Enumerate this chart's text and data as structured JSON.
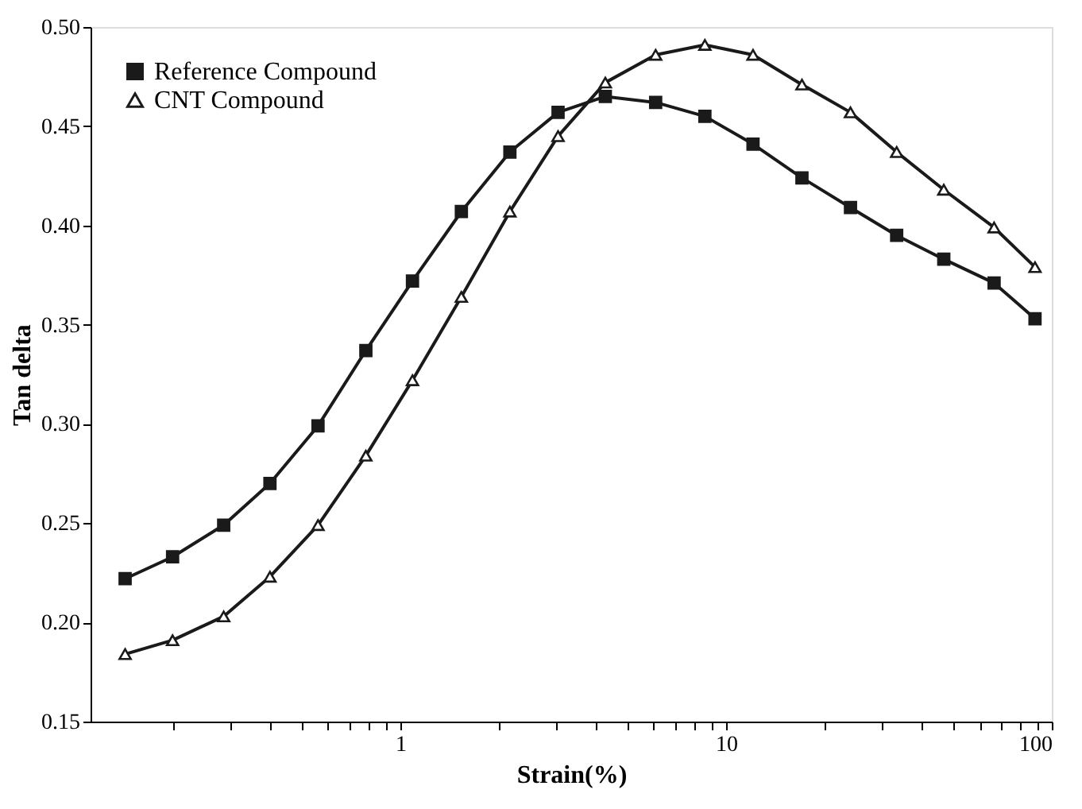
{
  "chart_data": {
    "type": "line",
    "xlabel": "Strain(%)",
    "ylabel": "Tan delta",
    "log": "x",
    "legend": "top left",
    "grid": false,
    "x": [
      0.143,
      0.2,
      0.287,
      0.398,
      0.559,
      0.784,
      1.09,
      1.54,
      2.17,
      3.05,
      4.26,
      6.08,
      8.61,
      12.1,
      17.1,
      24.1,
      33.4,
      46.6,
      66.5,
      88.8
    ],
    "xlim": [
      0.112,
      100
    ],
    "ylim": [
      0.15,
      0.5
    ],
    "xticks": [
      {
        "value": 0.2,
        "label": null
      },
      {
        "value": 0.3,
        "label": null
      },
      {
        "value": 0.4,
        "label": null
      },
      {
        "value": 0.5,
        "label": null
      },
      {
        "value": 0.6,
        "label": null
      },
      {
        "value": 0.7,
        "label": null
      },
      {
        "value": 0.8,
        "label": null
      },
      {
        "value": 0.9,
        "label": null
      },
      1,
      {
        "value": 2,
        "label": null
      },
      {
        "value": 3,
        "label": null
      },
      {
        "value": 4,
        "label": null
      },
      {
        "value": 5,
        "label": null
      },
      {
        "value": 6,
        "label": null
      },
      {
        "value": 7,
        "label": null
      },
      {
        "value": 8,
        "label": null
      },
      {
        "value": 9,
        "label": null
      },
      10,
      {
        "value": 20,
        "label": null
      },
      {
        "value": 30,
        "label": null
      },
      {
        "value": 40,
        "label": null
      },
      {
        "value": 50,
        "label": null
      },
      {
        "value": 60,
        "label": null
      },
      {
        "value": 70,
        "label": null
      },
      {
        "value": 80,
        "label": null
      },
      {
        "value": 90,
        "label": null
      },
      100
    ],
    "yticks": [
      {
        "value": 0.15,
        "label": "0.15"
      },
      {
        "value": 0.2,
        "label": "0.20"
      },
      {
        "value": 0.25,
        "label": "0.25"
      },
      {
        "value": 0.3,
        "label": "0.30"
      },
      {
        "value": 0.35,
        "label": "0.35"
      },
      {
        "value": 0.4,
        "label": "0.40"
      },
      {
        "value": 0.45,
        "label": "0.45"
      },
      {
        "value": 0.5,
        "label": "0.50"
      }
    ],
    "series": [
      {
        "name": "Reference Compound",
        "color": "#1a1a1a",
        "marker": "square",
        "values": [
          0.222,
          0.233,
          0.249,
          0.27,
          0.299,
          0.337,
          0.372,
          0.407,
          0.437,
          0.457,
          0.465,
          0.462,
          0.455,
          0.441,
          0.424,
          0.409,
          0.395,
          0.383,
          0.371,
          0.353
        ]
      },
      {
        "name": "CNT Compound",
        "color": "#1a1a1a",
        "marker": "triangle",
        "values": [
          0.184,
          0.191,
          0.203,
          0.223,
          0.249,
          0.284,
          0.322,
          0.364,
          0.407,
          0.445,
          0.472,
          0.486,
          0.491,
          0.486,
          0.471,
          0.457,
          0.437,
          0.418,
          0.399,
          0.379
        ]
      }
    ]
  }
}
